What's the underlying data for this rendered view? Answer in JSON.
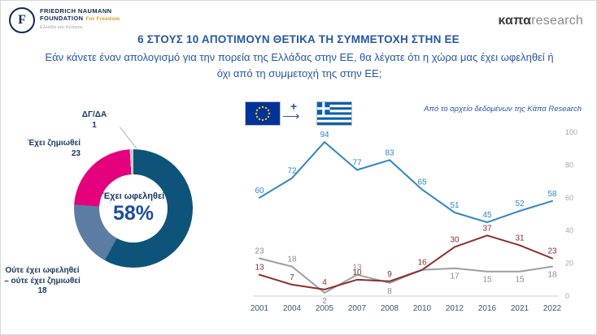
{
  "header": {
    "fnf": {
      "monogram": "F",
      "line1": "FRIEDRICH NAUMANN",
      "line2": "FOUNDATION",
      "tagline": "For Freedom",
      "office": "Ελλάδα και Κύπρος"
    },
    "kapa": {
      "bold": "καπα",
      "light": "research"
    }
  },
  "title": "6 ΣΤΟΥΣ 10 ΑΠΟΤΙΜΟΥΝ ΘΕΤΙΚΑ ΤΗ ΣΥΜΜΕΤΟΧΗ ΣΤΗΝ ΕΕ",
  "subtitle": "Εάν κάνετε έναν απολογισμό για την πορεία της Ελλάδας στην ΕΕ, θα λέγατε ότι η χώρα μας έχει ωφεληθεί ή όχι από τη συμμετοχή της στην ΕΕ;",
  "source_note": "Από το αρχείο δεδομένων της Κάπα Research",
  "flags": {
    "plus": "+",
    "arrow": "⟶"
  },
  "colors": {
    "title_blue": "#2457a6",
    "benefited": "#0e5379",
    "neither": "#5b7ca3",
    "harmed": "#e5007d",
    "dk_da": "#c9c9c9",
    "line_benefited": "#2e86c8",
    "line_harmed": "#8b2e2e",
    "line_neither": "#9e9e9e"
  },
  "chart_data": [
    {
      "type": "pie",
      "slices": [
        {
          "label": "Έχει ωφεληθεί",
          "value": 58,
          "color": "#0e5379"
        },
        {
          "label": "Ούτε έχει ωφεληθεί – ούτε έχει ζημιωθεί",
          "value": 18,
          "color": "#5b7ca3"
        },
        {
          "label": "Έχει ζημιωθεί",
          "value": 23,
          "color": "#e5007d"
        },
        {
          "label": "ΔΓ/ΔΑ",
          "value": 1,
          "color": "#c9c9c9"
        }
      ],
      "center_label": "Έχει ωφεληθεί",
      "center_value": "58%"
    },
    {
      "type": "line",
      "categories": [
        "2001",
        "2004",
        "2005",
        "2007",
        "2008",
        "2010",
        "2012",
        "2016",
        "2021",
        "2022"
      ],
      "series": [
        {
          "name": "Έχει ωφεληθεί",
          "color": "#2e86c8",
          "values": [
            60,
            72,
            94,
            77,
            83,
            65,
            51,
            45,
            52,
            58
          ]
        },
        {
          "name": "Έχει ζημιωθεί",
          "color": "#8b2e2e",
          "values": [
            13,
            7,
            4,
            10,
            9,
            16,
            30,
            37,
            31,
            23
          ]
        },
        {
          "name": "Ούτε έχει ωφεληθεί – ούτε έχει ζημιωθεί",
          "color": "#9e9e9e",
          "values": [
            23,
            18,
            2,
            13,
            8,
            16,
            17,
            15,
            15,
            18
          ]
        }
      ],
      "ylim": [
        0,
        100
      ],
      "yticks": [
        100,
        80,
        60,
        40,
        20,
        0
      ],
      "yaxis_side": "right",
      "grid": false,
      "legend": "none"
    }
  ]
}
